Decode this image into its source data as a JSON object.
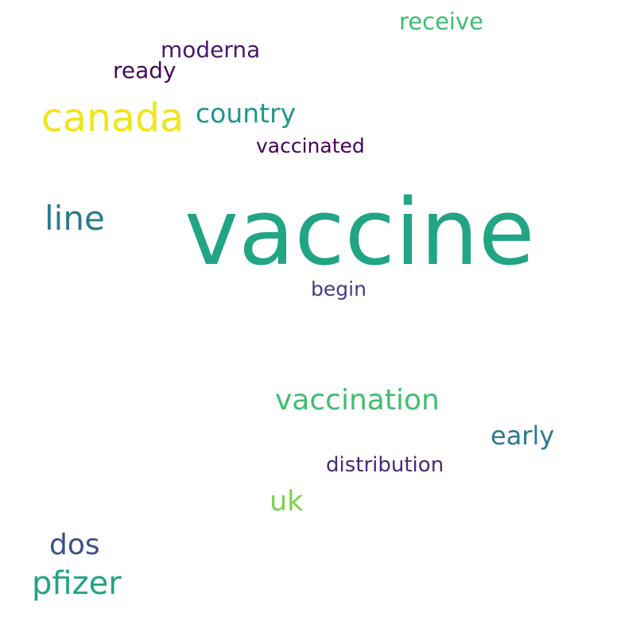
{
  "words": {
    "vaccine": {
      "text": "vaccine",
      "color": "#21a585"
    },
    "canada": {
      "text": "canada",
      "color": "#f0e51a"
    },
    "line": {
      "text": "line",
      "color": "#2a7a8e"
    },
    "vaccination": {
      "text": "vaccination",
      "color": "#3fbe6d"
    },
    "pfizer": {
      "text": "pfizer",
      "color": "#23a383"
    },
    "dos": {
      "text": "dos",
      "color": "#3b5089"
    },
    "country": {
      "text": "country",
      "color": "#1f968b"
    },
    "uk": {
      "text": "uk",
      "color": "#7ad151"
    },
    "early": {
      "text": "early",
      "color": "#2a788e"
    },
    "receive": {
      "text": "receive",
      "color": "#3fbc73"
    },
    "moderna": {
      "text": "moderna",
      "color": "#47186c"
    },
    "ready": {
      "text": "ready",
      "color": "#450a57"
    },
    "vaccinated": {
      "text": "vaccinated",
      "color": "#440154"
    },
    "distribution": {
      "text": "distribution",
      "color": "#472b78"
    },
    "begin": {
      "text": "begin",
      "color": "#433c84"
    }
  }
}
